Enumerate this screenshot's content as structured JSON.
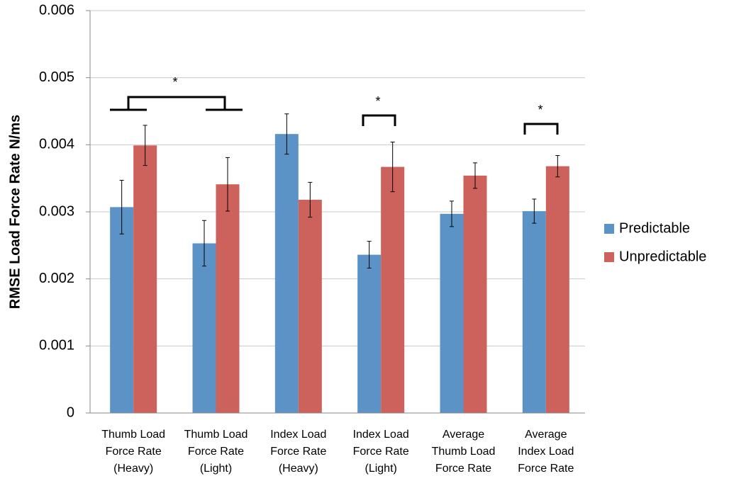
{
  "chart_data": {
    "type": "bar",
    "ylabel": "RMSE Load Force Rate N/ms",
    "categories": [
      [
        "Thumb Load",
        "Force Rate",
        "(Heavy)"
      ],
      [
        "Thumb Load",
        "Force Rate",
        "(Light)"
      ],
      [
        "Index Load",
        "Force Rate",
        "(Heavy)"
      ],
      [
        "Index Load",
        "Force Rate",
        "(Light)"
      ],
      [
        "Average",
        "Thumb Load",
        "Force Rate"
      ],
      [
        "Average",
        "Index Load",
        "Force Rate"
      ]
    ],
    "series": [
      {
        "name": "Predictable",
        "color": "#5b93c7",
        "values": [
          0.00307,
          0.00253,
          0.00416,
          0.00236,
          0.00297,
          0.00301
        ],
        "errors": [
          0.0004,
          0.00034,
          0.0003,
          0.0002,
          0.00019,
          0.00018
        ]
      },
      {
        "name": "Unpredictable",
        "color": "#cd625c",
        "values": [
          0.00399,
          0.00341,
          0.00318,
          0.00367,
          0.00354,
          0.00368
        ],
        "errors": [
          0.0003,
          0.0004,
          0.00026,
          0.00037,
          0.00019,
          0.00016
        ]
      }
    ],
    "annotations": [
      "*",
      "*",
      "*"
    ],
    "ylim": [
      0,
      0.006
    ],
    "yticks": [
      {
        "value": 0,
        "label": "0"
      },
      {
        "value": 0.001,
        "label": "0.001"
      },
      {
        "value": 0.002,
        "label": "0.002"
      },
      {
        "value": 0.003,
        "label": "0.003"
      },
      {
        "value": 0.004,
        "label": "0.004"
      },
      {
        "value": 0.005,
        "label": "0.005"
      },
      {
        "value": 0.006,
        "label": "0.006"
      }
    ],
    "grid": true,
    "legend": "right"
  }
}
